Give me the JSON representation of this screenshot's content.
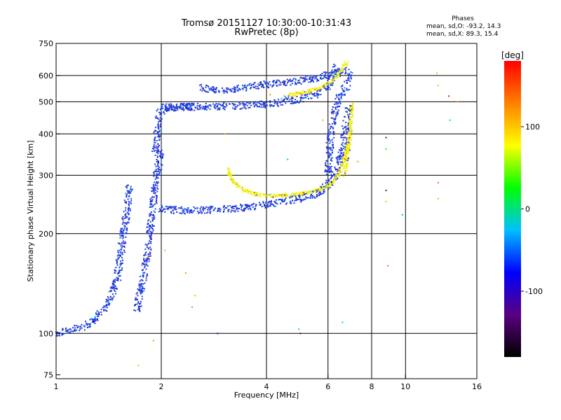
{
  "header": {
    "title_line1": "Tromsø 20151127 10:30:00-10:31:43",
    "title_line2": "RwPretec (8p)",
    "stats_title": "Phases",
    "stats_o": "mean, sd,O: -93.2, 14.3",
    "stats_x": "mean, sd,X: 89.3, 15.4"
  },
  "chart_data": {
    "type": "scatter",
    "title": "Tromsø 20151127 10:30:00-10:31:43",
    "subtitle": "RwPretec (8p)",
    "xlabel": "Frequency [MHz]",
    "ylabel": "Stationary phase Virtual Height [km]",
    "x_scale": "log",
    "y_scale": "log",
    "xlim": [
      1,
      16
    ],
    "ylim": [
      73,
      750
    ],
    "x_ticks": [
      1,
      2,
      4,
      6,
      8,
      10,
      16
    ],
    "y_ticks": [
      75,
      100,
      200,
      300,
      400,
      500,
      600,
      750
    ],
    "x_gridlines": [
      2,
      4,
      6,
      8,
      10
    ],
    "y_gridlines": [
      100,
      200,
      300,
      400,
      500,
      600
    ],
    "colorbar": {
      "label": "[deg]",
      "range": [
        -180,
        180
      ],
      "ticks": [
        100,
        0,
        -100
      ],
      "colors": [
        "#000000",
        "#5a0080",
        "#0000ff",
        "#00c0ff",
        "#00ff00",
        "#ffff00",
        "#ff8000",
        "#ff0000"
      ]
    },
    "series": [
      {
        "name": "O",
        "color": "#1e3cdc",
        "segments": [
          {
            "x": [
              1.0,
              1.05,
              1.12,
              1.2,
              1.3,
              1.4,
              1.5,
              1.55,
              1.6,
              1.62
            ],
            "y": [
              100,
              101,
              103,
              105,
              110,
              122,
              148,
              190,
              240,
              280
            ]
          },
          {
            "x": [
              1.7,
              1.75,
              1.82,
              1.88,
              1.92,
              1.96,
              2.0
            ],
            "y": [
              118,
              135,
              170,
              230,
              280,
              320,
              360
            ]
          },
          {
            "x": [
              1.98,
              2.05,
              2.3,
              2.8,
              3.5,
              4.3,
              5.0,
              5.6,
              6.0,
              6.3,
              6.6,
              6.9
            ],
            "y": [
              240,
              236,
              235,
              236,
              240,
              248,
              256,
              265,
              278,
              300,
              360,
              480
            ]
          },
          {
            "x": [
              1.92,
              1.95,
              1.98,
              2.1,
              2.3,
              2.5
            ],
            "y": [
              350,
              410,
              460,
              480,
              482,
              483
            ]
          },
          {
            "x": [
              2.0,
              2.3,
              2.8,
              3.5,
              4.2,
              5.0,
              5.5,
              6.0,
              6.2,
              6.3
            ],
            "y": [
              482,
              482,
              483,
              487,
              495,
              508,
              525,
              555,
              600,
              640
            ]
          },
          {
            "x": [
              2.6,
              3.0,
              3.5,
              4.0,
              4.5,
              5.0,
              5.5,
              6.0,
              6.5,
              6.9
            ],
            "y": [
              550,
              540,
              555,
              565,
              570,
              580,
              590,
              600,
              615,
              630
            ]
          },
          {
            "x": [
              6.0,
              6.05,
              6.1,
              6.2,
              6.3,
              6.5,
              6.8,
              7.0
            ],
            "y": [
              300,
              340,
              390,
              430,
              480,
              520,
              560,
              600
            ]
          }
        ]
      },
      {
        "name": "X",
        "color": "#f0f000",
        "segments": [
          {
            "x": [
              3.1,
              3.2,
              3.4,
              3.7,
              4.0,
              4.4,
              4.8,
              5.2,
              5.6,
              6.0,
              6.3,
              6.6,
              6.9
            ],
            "y": [
              315,
              290,
              272,
              263,
              260,
              261,
              262,
              265,
              270,
              278,
              292,
              320,
              380
            ]
          },
          {
            "x": [
              6.7,
              6.85,
              6.95,
              7.0,
              7.02
            ],
            "y": [
              300,
              360,
              410,
              460,
              500
            ]
          },
          {
            "x": [
              4.5,
              5.0,
              5.5,
              5.9,
              6.2,
              6.4,
              6.6,
              6.8
            ],
            "y": [
              520,
              530,
              545,
              560,
              580,
              600,
              630,
              660
            ]
          }
        ]
      },
      {
        "name": "scattered",
        "points": [
          {
            "x": 1.72,
            "y": 80,
            "phase": 110
          },
          {
            "x": 1.83,
            "y": 170,
            "phase": 110
          },
          {
            "x": 1.9,
            "y": 95,
            "phase": 120
          },
          {
            "x": 2.05,
            "y": 178,
            "phase": 110
          },
          {
            "x": 2.35,
            "y": 152,
            "phase": 120
          },
          {
            "x": 2.45,
            "y": 120,
            "phase": 130
          },
          {
            "x": 2.5,
            "y": 130,
            "phase": 110
          },
          {
            "x": 2.9,
            "y": 100,
            "phase": -100
          },
          {
            "x": 3.05,
            "y": 400,
            "phase": 120
          },
          {
            "x": 4.1,
            "y": 525,
            "phase": 120
          },
          {
            "x": 4.6,
            "y": 335,
            "phase": -20
          },
          {
            "x": 4.95,
            "y": 103,
            "phase": -10
          },
          {
            "x": 5.0,
            "y": 100,
            "phase": -120
          },
          {
            "x": 5.8,
            "y": 440,
            "phase": 110
          },
          {
            "x": 6.6,
            "y": 108,
            "phase": -20
          },
          {
            "x": 6.8,
            "y": 410,
            "phase": 110
          },
          {
            "x": 7.3,
            "y": 330,
            "phase": 120
          },
          {
            "x": 8.8,
            "y": 390,
            "phase": -120
          },
          {
            "x": 8.8,
            "y": 360,
            "phase": 30
          },
          {
            "x": 8.8,
            "y": 270,
            "phase": -130
          },
          {
            "x": 8.8,
            "y": 250,
            "phase": 50
          },
          {
            "x": 8.9,
            "y": 160,
            "phase": 140
          },
          {
            "x": 9.8,
            "y": 228,
            "phase": -30
          },
          {
            "x": 12.3,
            "y": 610,
            "phase": 110
          },
          {
            "x": 12.4,
            "y": 560,
            "phase": 110
          },
          {
            "x": 12.4,
            "y": 285,
            "phase": 140
          },
          {
            "x": 12.4,
            "y": 255,
            "phase": 40
          },
          {
            "x": 13.3,
            "y": 520,
            "phase": 170
          },
          {
            "x": 13.4,
            "y": 440,
            "phase": -20
          },
          {
            "x": 14.1,
            "y": 500,
            "phase": 120
          }
        ]
      }
    ]
  }
}
